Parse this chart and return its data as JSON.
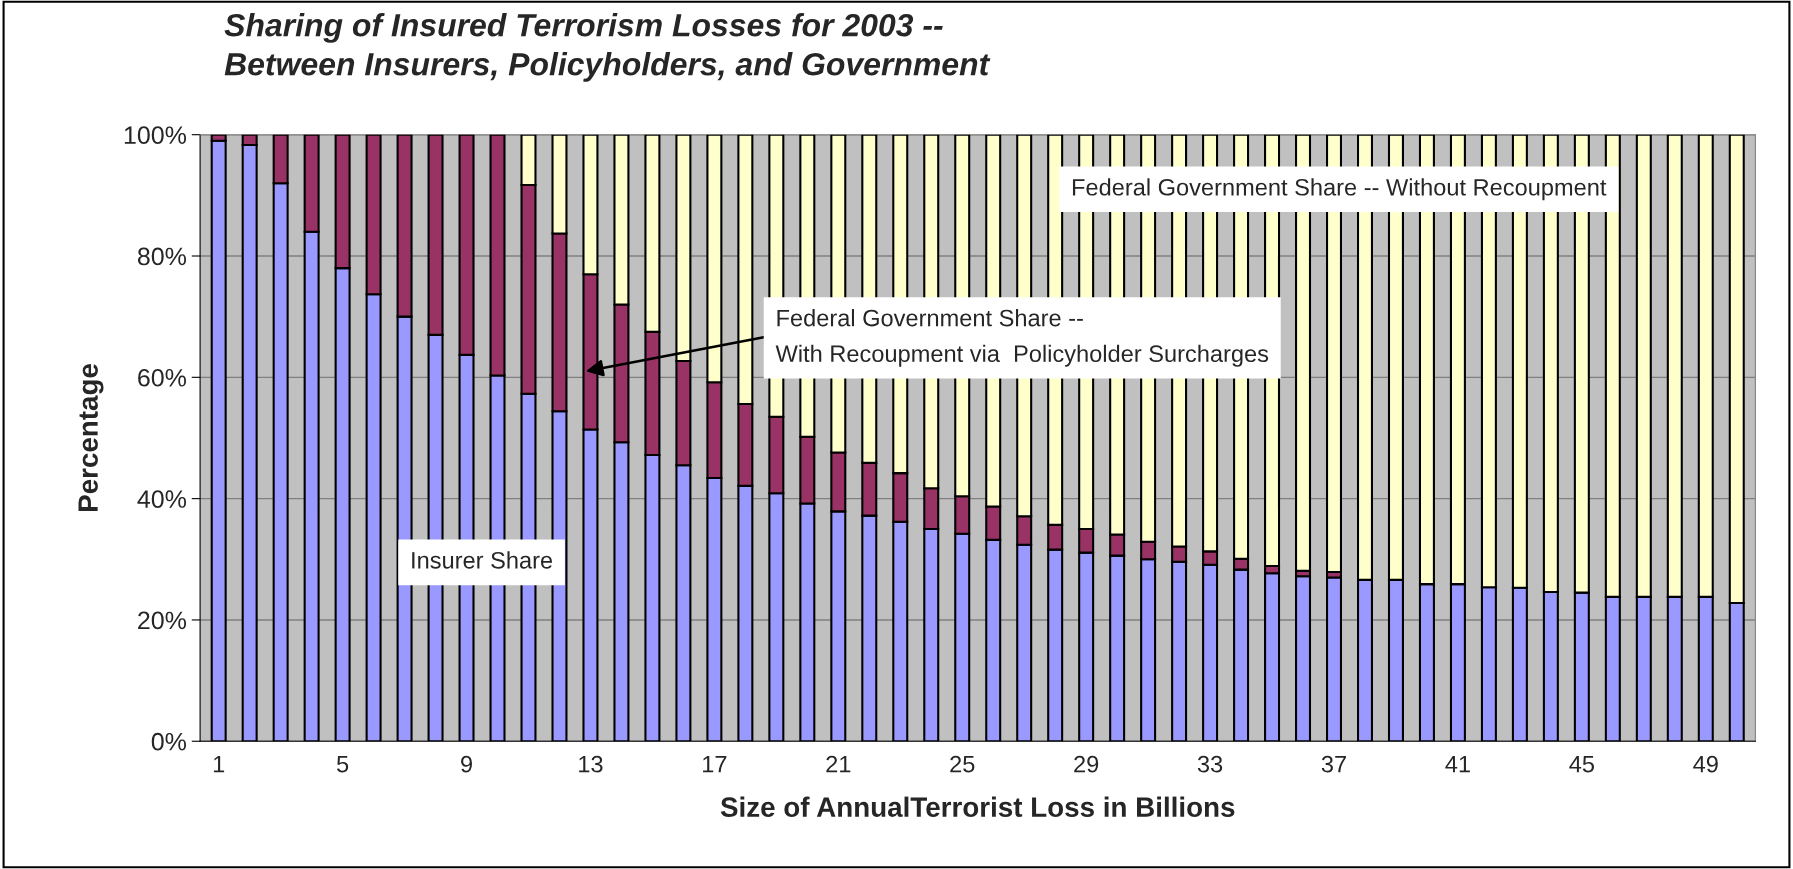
{
  "chart_data": {
    "type": "bar",
    "stacked": true,
    "title": "Sharing of Insured Terrorism Losses for 2003 --\nBetween Insurers, Policyholders, and Government",
    "xlabel": "Size of AnnualTerrorist Loss in Billions",
    "ylabel": "Percentage",
    "categories": [
      "1",
      null,
      null,
      null,
      "5",
      null,
      null,
      null,
      "9",
      null,
      null,
      null,
      "13",
      null,
      null,
      null,
      "17",
      null,
      null,
      null,
      "21",
      null,
      null,
      null,
      "25",
      null,
      null,
      null,
      "29",
      null,
      null,
      null,
      "33",
      null,
      null,
      null,
      "37",
      null,
      null,
      null,
      "41",
      null,
      null,
      null,
      "45",
      null,
      null,
      null,
      "49",
      null
    ],
    "series": [
      {
        "name": "Insurer Share",
        "color": "#9999ff",
        "values": [
          99,
          98.3,
          92,
          84,
          78,
          73.7,
          70,
          67,
          63.7,
          60.3,
          57.3,
          54.4,
          51.4,
          49.3,
          47.2,
          45.5,
          43.4,
          42.1,
          40.9,
          39.2,
          37.9,
          37.2,
          36.2,
          35,
          34.2,
          33.2,
          32.4,
          31.6,
          31.1,
          30.6,
          30,
          29.6,
          29.1,
          28.3,
          27.7,
          27.2,
          27,
          26.6,
          26.6,
          25.9,
          25.9,
          25.4,
          25.3,
          24.6,
          24.5,
          23.8,
          23.8,
          23.8,
          23.8,
          22.8
        ]
      },
      {
        "name": "Federal Government Share --\nWith Recoupment via  Policyholder Surcharges",
        "color": "#993366",
        "values": [
          1,
          1.7,
          8,
          16,
          22,
          26.3,
          30,
          33,
          36.3,
          39.7,
          34.4,
          29.3,
          25.6,
          22.7,
          20.3,
          17.2,
          15.8,
          13.5,
          12.6,
          11,
          9.7,
          8.7,
          8,
          6.7,
          6.2,
          5.5,
          4.7,
          4.1,
          3.9,
          3.5,
          2.9,
          2.5,
          2.2,
          1.8,
          1.2,
          0.9,
          0.9,
          null,
          null,
          null,
          null,
          null,
          null,
          null,
          null,
          null,
          null,
          null,
          null,
          null
        ]
      },
      {
        "name": "Federal Government Share -- Without Recoupment",
        "color": "#ffffcc",
        "values": [
          null,
          null,
          null,
          null,
          null,
          null,
          null,
          null,
          null,
          null,
          8.3,
          16.3,
          23,
          28,
          32.5,
          37.3,
          40.8,
          44.4,
          46.5,
          49.8,
          52.4,
          54.1,
          55.8,
          58.3,
          59.6,
          61.3,
          62.9,
          64.3,
          65,
          65.9,
          67.1,
          67.9,
          68.7,
          69.9,
          71.1,
          71.9,
          72.1,
          73.4,
          73.4,
          74.1,
          74.1,
          74.6,
          74.7,
          75.4,
          75.5,
          76.2,
          76.2,
          76.2,
          76.2,
          77.2
        ]
      }
    ],
    "ylim": [
      0,
      100
    ],
    "yticks": [
      {
        "value": 0,
        "label": "0%"
      },
      {
        "value": 20,
        "label": "20%"
      },
      {
        "value": 40,
        "label": "40%"
      },
      {
        "value": 60,
        "label": "60%"
      },
      {
        "value": 80,
        "label": "80%"
      },
      {
        "value": 100,
        "label": "100%"
      }
    ],
    "grid": "y",
    "legend": false
  }
}
